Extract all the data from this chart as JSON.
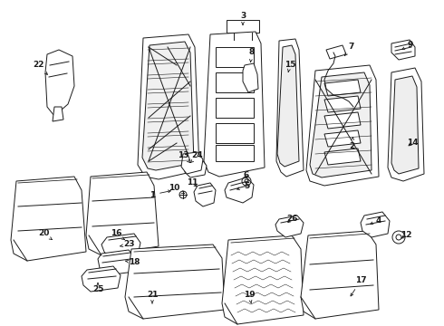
{
  "bg_color": "#ffffff",
  "line_color": "#1a1a1a",
  "lw": 0.7,
  "figsize": [
    4.9,
    3.6
  ],
  "dpi": 100,
  "labels": [
    [
      1,
      168,
      215,
      192,
      210
    ],
    [
      2,
      388,
      162,
      390,
      148
    ],
    [
      3,
      268,
      17,
      268,
      28
    ],
    [
      4,
      418,
      243,
      408,
      248
    ],
    [
      5,
      272,
      206,
      258,
      210
    ],
    [
      6,
      272,
      193,
      272,
      200
    ],
    [
      7,
      388,
      52,
      380,
      62
    ],
    [
      8,
      278,
      58,
      276,
      72
    ],
    [
      9,
      453,
      50,
      443,
      55
    ],
    [
      10,
      192,
      207,
      204,
      214
    ],
    [
      11,
      212,
      202,
      220,
      208
    ],
    [
      12,
      448,
      260,
      440,
      265
    ],
    [
      13,
      202,
      172,
      210,
      180
    ],
    [
      14,
      455,
      158,
      448,
      163
    ],
    [
      15,
      320,
      72,
      318,
      80
    ],
    [
      16,
      128,
      258,
      138,
      265
    ],
    [
      17,
      398,
      310,
      385,
      330
    ],
    [
      18,
      148,
      290,
      138,
      288
    ],
    [
      19,
      275,
      325,
      278,
      338
    ],
    [
      20,
      48,
      258,
      58,
      265
    ],
    [
      21,
      168,
      325,
      168,
      338
    ],
    [
      22,
      42,
      72,
      55,
      85
    ],
    [
      23,
      142,
      270,
      132,
      272
    ],
    [
      24,
      218,
      172,
      210,
      180
    ],
    [
      25,
      108,
      320,
      108,
      312
    ],
    [
      26,
      322,
      242,
      315,
      248
    ]
  ]
}
